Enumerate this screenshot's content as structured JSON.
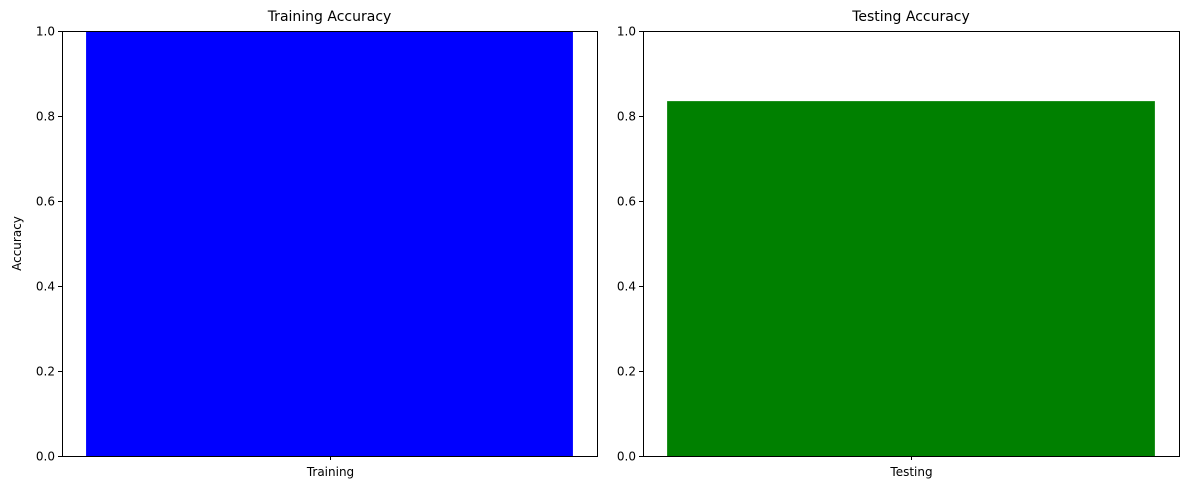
{
  "chart_data": [
    {
      "type": "bar",
      "title": "Training Accuracy",
      "xlabel": "",
      "ylabel": "Accuracy",
      "categories": [
        "Training"
      ],
      "values": [
        1.0
      ],
      "color": "#0000ff",
      "ylim": [
        0,
        1.0
      ],
      "yticks": [
        "0.0",
        "0.2",
        "0.4",
        "0.6",
        "0.8",
        "1.0"
      ],
      "grid": false
    },
    {
      "type": "bar",
      "title": "Testing Accuracy",
      "xlabel": "",
      "ylabel": "",
      "categories": [
        "Testing"
      ],
      "values": [
        0.835
      ],
      "color": "#008000",
      "ylim": [
        0,
        1.0
      ],
      "yticks": [
        "0.0",
        "0.2",
        "0.4",
        "0.6",
        "0.8",
        "1.0"
      ],
      "grid": false
    }
  ]
}
